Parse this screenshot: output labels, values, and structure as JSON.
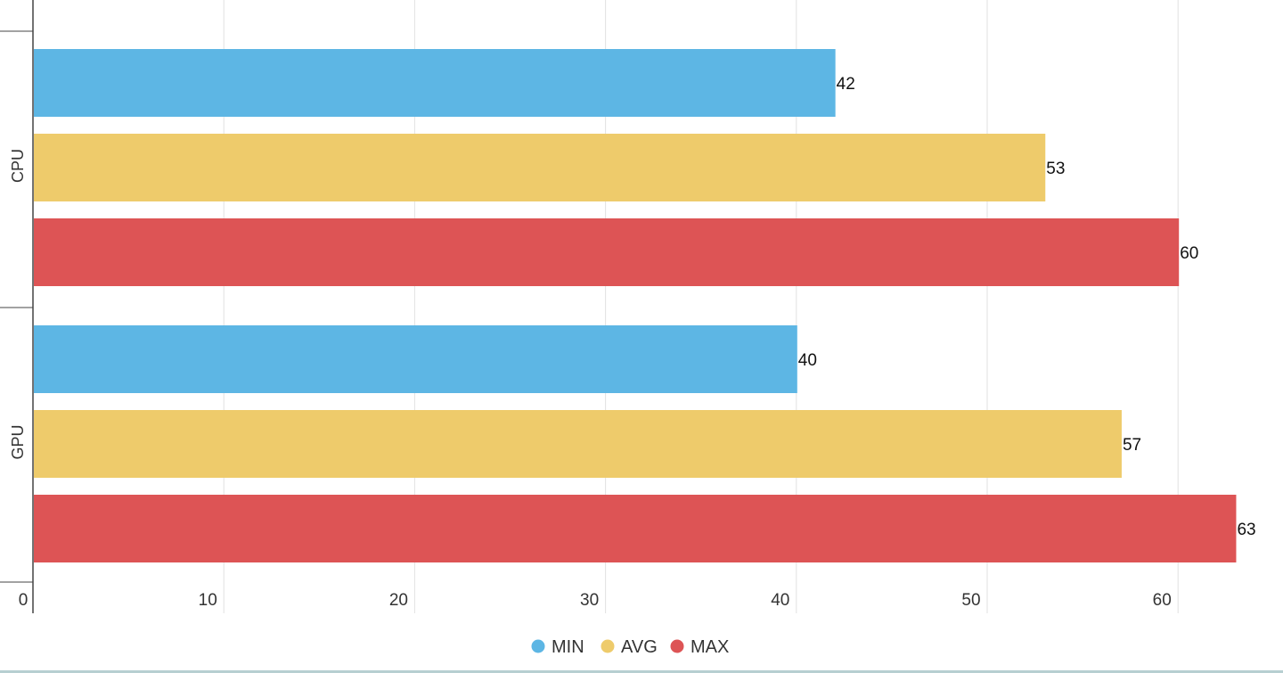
{
  "chart_data": {
    "type": "bar",
    "orientation": "horizontal",
    "title": "",
    "xlabel": "",
    "ylabel": "",
    "categories": [
      "CPU",
      "GPU"
    ],
    "series": [
      {
        "name": "MIN",
        "values": [
          42,
          40
        ],
        "color": "#5db6e4"
      },
      {
        "name": "AVG",
        "values": [
          53,
          57
        ],
        "color": "#eecb6b"
      },
      {
        "name": "MAX",
        "values": [
          60,
          63
        ],
        "color": "#dd5455"
      }
    ],
    "xlim": [
      0,
      65
    ],
    "x_ticks": [
      0,
      10,
      20,
      30,
      40,
      50,
      60
    ],
    "x_tick_labels": [
      "0",
      "10",
      "20",
      "30",
      "40",
      "50",
      "60"
    ],
    "grid": "vertical",
    "legend_position": "bottom-center",
    "data_labels": true
  }
}
